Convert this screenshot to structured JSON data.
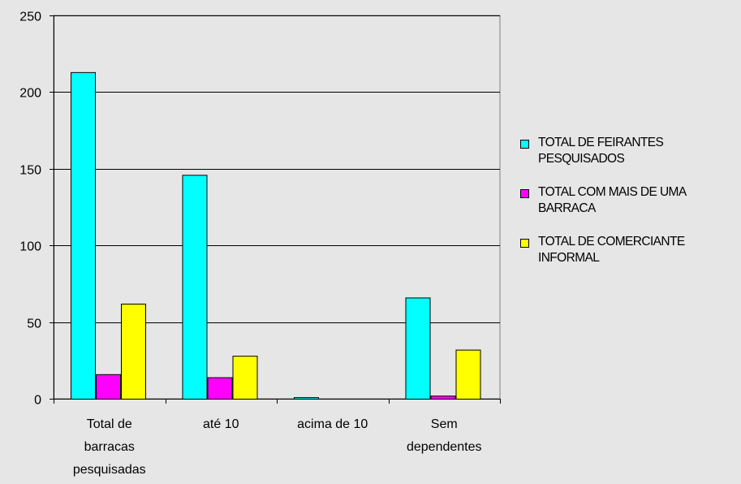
{
  "chart_data": {
    "type": "bar",
    "categories": [
      [
        "Total de",
        "barracas",
        "pesquisadas"
      ],
      [
        "até 10"
      ],
      [
        "acima de 10"
      ],
      [
        "Sem",
        "dependentes"
      ]
    ],
    "series": [
      {
        "name": "TOTAL DE FEIRANTES PESQUISADOS",
        "color": "#00ffff",
        "values": [
          213,
          146,
          1,
          66
        ]
      },
      {
        "name": "TOTAL COM MAIS DE UMA BARRACA",
        "color": "#ff00ff",
        "values": [
          16,
          14,
          0,
          2
        ]
      },
      {
        "name": "TOTAL DE COMERCIANTE INFORMAL",
        "color": "#ffff00",
        "values": [
          62,
          28,
          0,
          32
        ]
      }
    ],
    "y_ticks": [
      "0",
      "50",
      "100",
      "150",
      "200",
      "250"
    ],
    "ylim": [
      0,
      250
    ],
    "grid": true,
    "legend_position": "right",
    "background": "#e6e6e6"
  }
}
